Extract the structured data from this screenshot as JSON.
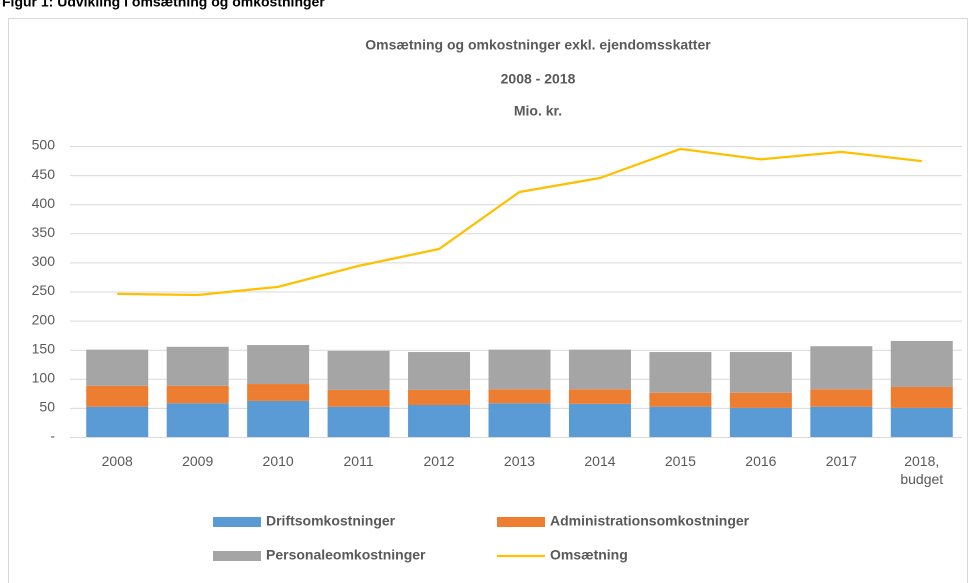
{
  "heading": "Figur 1: Udvikling i omsætning og omkostninger",
  "chart_data": {
    "type": "bar",
    "title": "Omsætning og omkostninger exkl. ejendomsskatter",
    "subtitle": "2008 - 2018",
    "unit_label": "Mio. kr.",
    "categories": [
      "2008",
      "2009",
      "2010",
      "2011",
      "2012",
      "2013",
      "2014",
      "2015",
      "2016",
      "2017",
      "2018, budget"
    ],
    "stacked": true,
    "series": [
      {
        "name": "Driftsomkostninger",
        "color": "#5b9bd5",
        "values": [
          52,
          58,
          62,
          52,
          55,
          58,
          57,
          52,
          50,
          52,
          50
        ]
      },
      {
        "name": "Administrationsomkostninger",
        "color": "#ed7d31",
        "values": [
          36,
          30,
          29,
          29,
          26,
          24,
          25,
          24,
          26,
          30,
          36
        ]
      },
      {
        "name": "Personaleomkostninger",
        "color": "#a5a5a5",
        "values": [
          62,
          67,
          67,
          67,
          65,
          68,
          68,
          70,
          70,
          74,
          79
        ]
      },
      {
        "name": "Omsætning",
        "color": "#ffc000",
        "type": "line",
        "values": [
          246,
          244,
          258,
          294,
          323,
          421,
          445,
          495,
          477,
          490,
          474
        ]
      }
    ],
    "ylim": [
      0,
      500
    ],
    "yticks": [
      {
        "value": 0,
        "label": "-"
      },
      50,
      100,
      150,
      200,
      250,
      300,
      350,
      400,
      450,
      500
    ],
    "grid": true,
    "legend": "bottom"
  }
}
